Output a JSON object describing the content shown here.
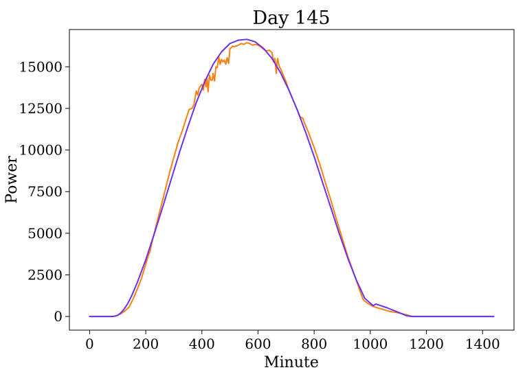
{
  "chart_data": {
    "type": "line",
    "title": "Day 145",
    "xlabel": "Minute",
    "ylabel": "Power",
    "xlim": [
      -72,
      1512
    ],
    "ylim": [
      -820,
      17240
    ],
    "xticks": [
      0,
      200,
      400,
      600,
      800,
      1000,
      1200,
      1400
    ],
    "yticks": [
      0,
      2500,
      5000,
      7500,
      10000,
      12500,
      15000
    ],
    "xtick_labels": [
      "0",
      "200",
      "400",
      "600",
      "800",
      "1000",
      "1200",
      "1400"
    ],
    "ytick_labels": [
      "0",
      "2500",
      "5000",
      "7500",
      "10000",
      "12500",
      "15000"
    ],
    "grid": false,
    "legend": false,
    "series": [
      {
        "color": "#ff7f0e",
        "x": [
          0,
          80,
          95,
          110,
          125,
          140,
          155,
          170,
          185,
          200,
          210,
          215,
          225,
          240,
          255,
          270,
          285,
          300,
          315,
          330,
          345,
          355,
          365,
          372,
          380,
          385,
          390,
          395,
          400,
          405,
          410,
          415,
          418,
          422,
          427,
          432,
          437,
          440,
          445,
          450,
          455,
          460,
          465,
          470,
          475,
          480,
          485,
          490,
          495,
          500,
          505,
          510,
          515,
          520,
          525,
          530,
          540,
          550,
          560,
          570,
          580,
          590,
          600,
          610,
          620,
          630,
          640,
          650,
          655,
          660,
          665,
          668,
          670,
          672,
          676,
          680,
          690,
          700,
          710,
          720,
          735,
          750,
          760,
          765,
          780,
          800,
          820,
          840,
          860,
          880,
          900,
          920,
          940,
          960,
          965,
          975,
          990,
          1010,
          1030,
          1050,
          1070,
          1100,
          1130,
          1150,
          1200,
          1300,
          1440
        ],
        "y": [
          0,
          0,
          30,
          150,
          320,
          550,
          1050,
          1650,
          2300,
          3150,
          3700,
          3900,
          4650,
          5650,
          6650,
          7650,
          8650,
          9550,
          10450,
          11150,
          11950,
          12450,
          12500,
          12750,
          13550,
          13300,
          13700,
          13850,
          13950,
          13600,
          14250,
          13800,
          14350,
          13500,
          14500,
          14200,
          14200,
          14600,
          14150,
          15000,
          14950,
          15600,
          15150,
          15450,
          15300,
          15400,
          15150,
          15550,
          15200,
          16100,
          16150,
          16250,
          16200,
          16250,
          16250,
          16300,
          16400,
          16350,
          16450,
          16400,
          16300,
          16350,
          16300,
          16200,
          16050,
          15950,
          16000,
          15850,
          15300,
          15500,
          14600,
          15300,
          15500,
          15300,
          15000,
          14900,
          14500,
          14100,
          13600,
          13200,
          12600,
          12000,
          11900,
          11650,
          11050,
          10150,
          9150,
          8050,
          6950,
          5800,
          4700,
          3600,
          2650,
          1700,
          1450,
          1000,
          800,
          600,
          500,
          400,
          300,
          220,
          100,
          0,
          0,
          0,
          0
        ]
      },
      {
        "color": "#6930f0",
        "x": [
          0,
          80,
          90,
          100,
          110,
          120,
          135,
          150,
          170,
          200,
          230,
          260,
          290,
          320,
          350,
          380,
          410,
          440,
          470,
          500,
          530,
          560,
          590,
          620,
          650,
          680,
          710,
          740,
          770,
          800,
          830,
          860,
          890,
          920,
          950,
          980,
          1010,
          1020,
          1060,
          1100,
          1130,
          1150,
          1200,
          1300,
          1440
        ],
        "y": [
          0,
          0,
          20,
          80,
          200,
          380,
          750,
          1250,
          2050,
          3400,
          4950,
          6550,
          8200,
          9850,
          11400,
          12850,
          14100,
          15150,
          15900,
          16400,
          16600,
          16650,
          16500,
          16100,
          15500,
          14650,
          13600,
          12400,
          11050,
          9600,
          8050,
          6500,
          4950,
          3500,
          2200,
          1100,
          650,
          750,
          520,
          250,
          40,
          0,
          0,
          0,
          0
        ]
      }
    ]
  }
}
